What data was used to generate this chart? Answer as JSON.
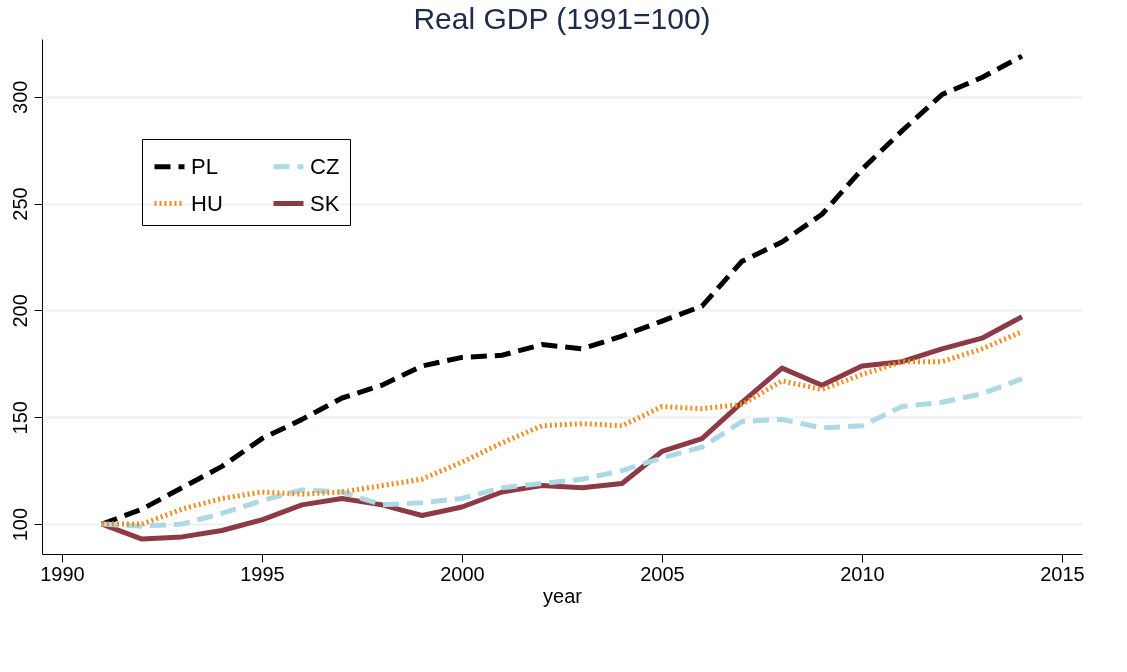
{
  "chart_data": {
    "type": "line",
    "title": "Real GDP (1991=100)",
    "xlabel": "year",
    "x": [
      1991,
      1992,
      1993,
      1994,
      1995,
      1996,
      1997,
      1998,
      1999,
      2000,
      2001,
      2002,
      2003,
      2004,
      2005,
      2006,
      2007,
      2008,
      2009,
      2010,
      2011,
      2012,
      2013,
      2014
    ],
    "series": [
      {
        "name": "PL",
        "color": "#000000",
        "line_style": "dashed",
        "values": [
          100,
          107,
          117,
          127,
          140,
          149,
          159,
          165,
          174,
          178,
          179,
          184,
          182,
          188,
          195,
          202,
          223,
          232,
          245,
          266,
          284,
          301,
          309,
          319
        ]
      },
      {
        "name": "HU",
        "color": "#f28c1f",
        "line_style": "dotted",
        "values": [
          100,
          100,
          107,
          112,
          115,
          114,
          115,
          118,
          121,
          129,
          138,
          146,
          147,
          146,
          155,
          154,
          156,
          167,
          163,
          170,
          176,
          176,
          182,
          190
        ]
      },
      {
        "name": "CZ",
        "color": "#add8e6",
        "line_style": "dashed",
        "values": [
          100,
          99,
          100,
          105,
          111,
          116,
          115,
          109,
          110,
          112,
          117,
          119,
          121,
          125,
          131,
          136,
          148,
          149,
          145,
          146,
          155,
          157,
          161,
          168
        ]
      },
      {
        "name": "SK",
        "color": "#8b3a46",
        "line_style": "solid",
        "values": [
          100,
          93,
          94,
          97,
          102,
          109,
          112,
          109,
          104,
          108,
          115,
          118,
          117,
          119,
          134,
          140,
          157,
          173,
          165,
          174,
          176,
          182,
          187,
          197
        ]
      }
    ],
    "xlim": [
      1989.5,
      2015.5
    ],
    "xticks": [
      1990,
      1995,
      2000,
      2005,
      2010,
      2015
    ],
    "ylim": [
      86,
      327
    ],
    "yticks": [
      100,
      150,
      200,
      250,
      300
    ],
    "grid": "y",
    "legend": "top left"
  }
}
